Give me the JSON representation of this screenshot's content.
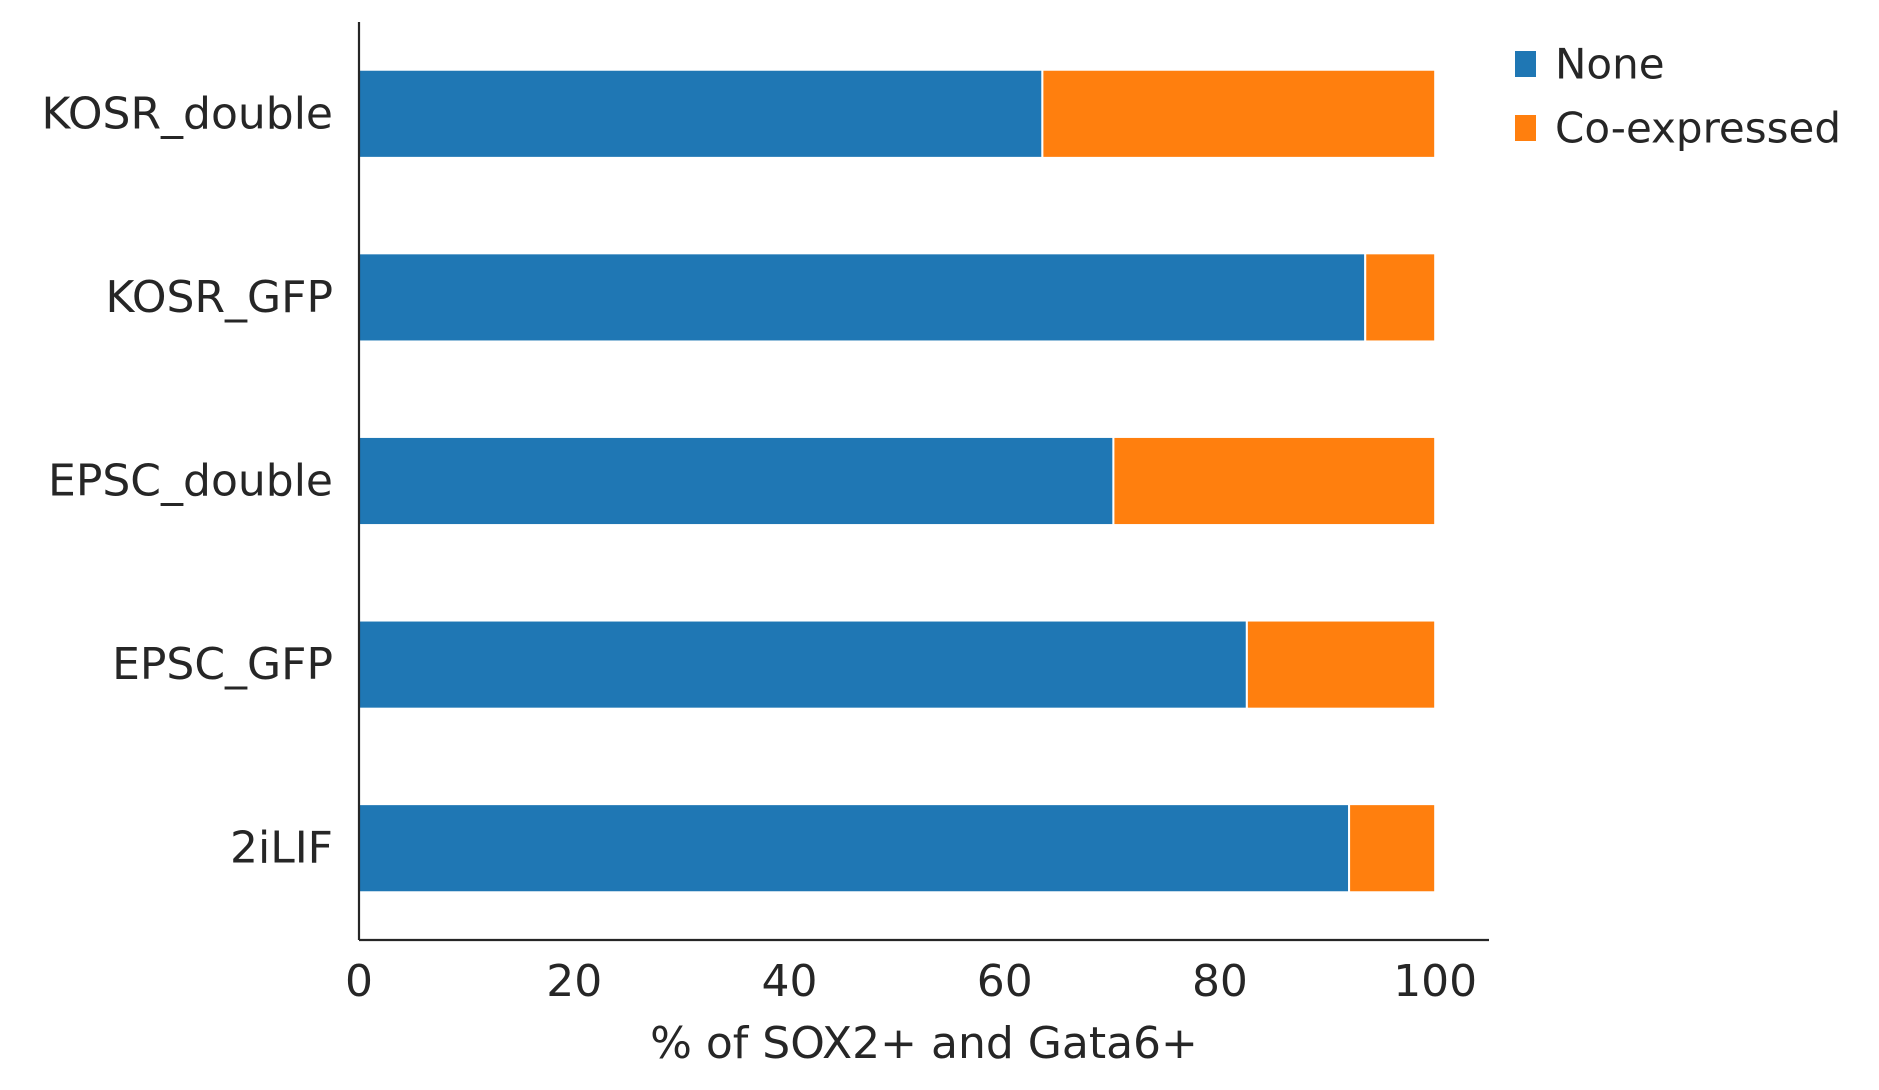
{
  "chart_data": {
    "type": "bar",
    "orientation": "horizontal",
    "stacked": true,
    "title": "",
    "xlabel": "% of SOX2+ and Gata6+",
    "ylabel": "",
    "xlim": [
      0,
      105
    ],
    "xticks": [
      0,
      20,
      40,
      60,
      80,
      100
    ],
    "xtick_labels": [
      "0",
      "20",
      "40",
      "60",
      "80",
      "100"
    ],
    "categories": [
      "KOSR_double",
      "KOSR_GFP",
      "EPSC_double",
      "EPSC_GFP",
      "2iLIF"
    ],
    "series": [
      {
        "name": "None",
        "color": "#1f77b4",
        "values": [
          63.5,
          93.5,
          70.1,
          82.5,
          92.0
        ]
      },
      {
        "name": "Co-expressed",
        "color": "#ff7f0e",
        "values": [
          36.5,
          6.5,
          29.9,
          17.5,
          8.0
        ]
      }
    ],
    "grid": false,
    "legend_position": "top-right, outside the axes"
  }
}
